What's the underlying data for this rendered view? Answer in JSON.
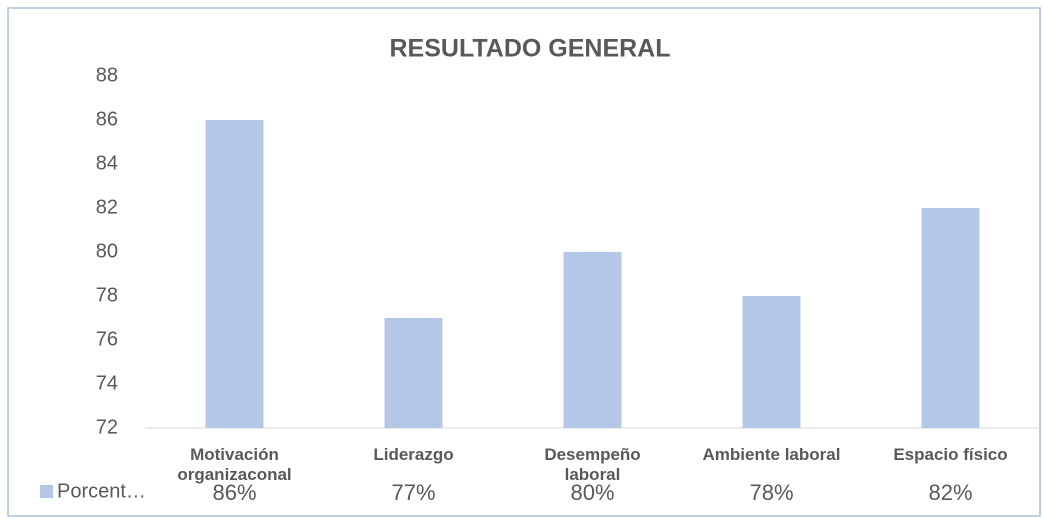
{
  "chart_data": {
    "type": "bar",
    "title": "RESULTADO GENERAL",
    "categories": [
      "Motivación organizaconal",
      "Liderazgo",
      "Desempeño laboral",
      "Ambiente laboral",
      "Espacio físico"
    ],
    "series": [
      {
        "name": "Porcent…",
        "color": "#b4c7e7",
        "values": [
          86,
          77,
          80,
          78,
          82
        ],
        "value_labels": [
          "86%",
          "77%",
          "80%",
          "78%",
          "82%"
        ]
      }
    ],
    "ylim": [
      72,
      88
    ],
    "yticks": [
      72,
      74,
      76,
      78,
      80,
      82,
      84,
      86,
      88
    ],
    "grid": false
  }
}
